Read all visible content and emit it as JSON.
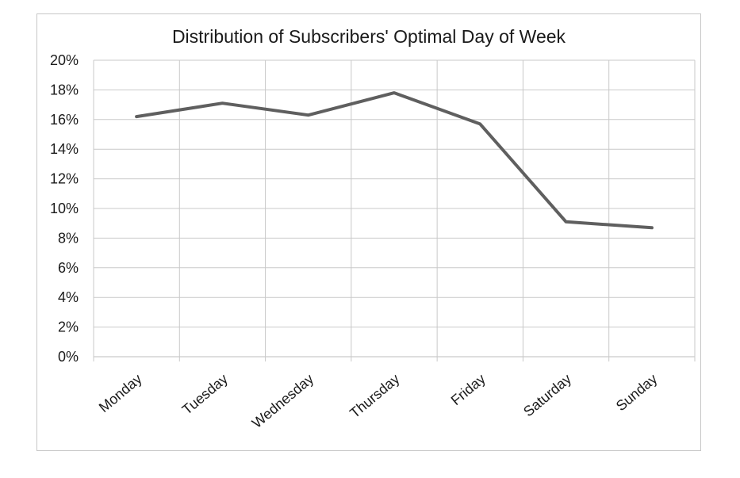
{
  "chart_data": {
    "type": "line",
    "title": "Distribution of Subscribers' Optimal Day of Week",
    "xlabel": "",
    "ylabel": "",
    "categories": [
      "Monday",
      "Tuesday",
      "Wednesday",
      "Thursday",
      "Friday",
      "Saturday",
      "Sunday"
    ],
    "series": [
      {
        "values": [
          16.2,
          17.1,
          16.3,
          17.8,
          15.7,
          9.1,
          8.7
        ],
        "color": "#5f5f5f"
      }
    ],
    "ylim": [
      0,
      20
    ],
    "yticks": [
      0,
      2,
      4,
      6,
      8,
      10,
      12,
      14,
      16,
      18,
      20
    ],
    "ytick_labels": [
      "0%",
      "2%",
      "4%",
      "6%",
      "8%",
      "10%",
      "12%",
      "14%",
      "16%",
      "18%",
      "20%"
    ],
    "grid": true,
    "legend": "none"
  }
}
